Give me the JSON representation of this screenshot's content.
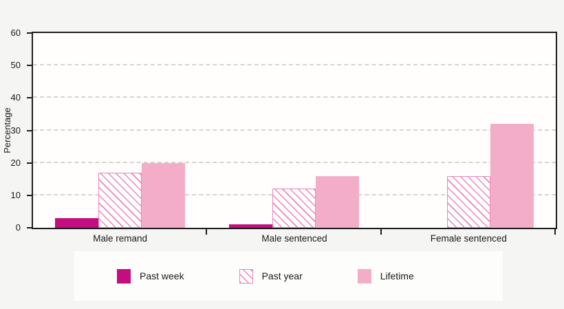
{
  "page": {
    "background_color": "#f5f5f3",
    "plot_background_color": "#fffefc",
    "axis_color": "#1c1c1c",
    "gridline_color": "#d4d4cf",
    "text_color": "#1a1a1a",
    "legend_background_color": "#fdfdfb"
  },
  "chart_data": {
    "type": "bar",
    "title": "",
    "xlabel": "",
    "ylabel": "Percentage",
    "ylim": [
      0,
      60
    ],
    "yticks": [
      0,
      10,
      20,
      30,
      40,
      50,
      60
    ],
    "grid": "horizontal-dashed",
    "legend_position": "bottom",
    "categories": [
      "Male remand",
      "Male sentenced",
      "Female sentenced"
    ],
    "series": [
      {
        "name": "Past week",
        "values": [
          3,
          1,
          0
        ],
        "fill": "solid",
        "color": "#c40d7e"
      },
      {
        "name": "Past year",
        "values": [
          17,
          12,
          16
        ],
        "fill": "hatch-diagonal",
        "color": "#e987bb"
      },
      {
        "name": "Lifetime",
        "values": [
          20,
          16,
          32
        ],
        "fill": "solid",
        "color": "#f4adc8"
      }
    ]
  }
}
